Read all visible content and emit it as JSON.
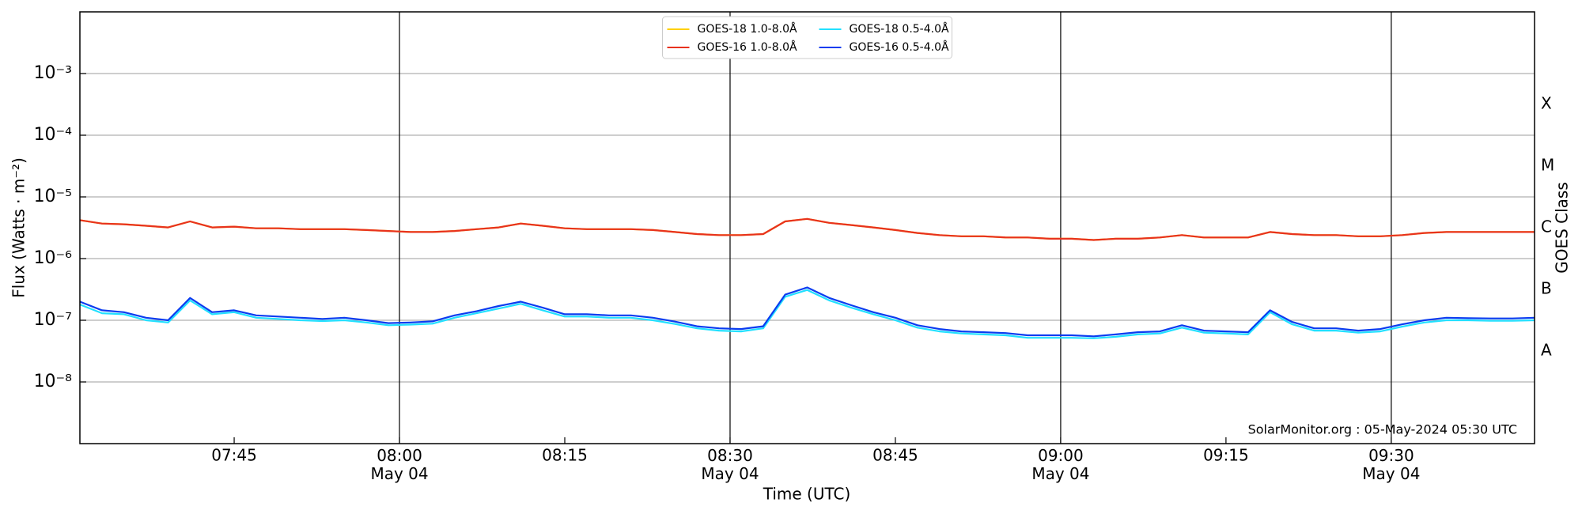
{
  "chart_data": {
    "type": "line",
    "ylabel": "Flux (Watts · m⁻²)",
    "xlabel": "Time (UTC)",
    "y2label": "GOES Class",
    "annotation": "SolarMonitor.org : 05-May-2024 05:30 UTC",
    "ylog": true,
    "grid": true,
    "legend": "upper center",
    "xlim": [
      "07:31",
      "09:43"
    ],
    "xticks": [
      "07:45",
      {
        "value": "08:00",
        "label": "08:00\nMay 04"
      },
      "08:15",
      {
        "value": "08:30",
        "label": "08:30\nMay 04"
      },
      "08:45",
      {
        "value": "09:00",
        "label": "09:00\nMay 04"
      },
      "09:15",
      {
        "value": "09:30",
        "label": "09:30\nMay 04"
      }
    ],
    "ylim": [
      1e-09,
      0.01
    ],
    "yticks": [
      {
        "value": 1e-08,
        "label": "10⁻⁸"
      },
      {
        "value": 1e-07,
        "label": "10⁻⁷"
      },
      {
        "value": 1e-06,
        "label": "10⁻⁶"
      },
      {
        "value": 1e-05,
        "label": "10⁻⁵"
      },
      {
        "value": 0.0001,
        "label": "10⁻⁴"
      },
      {
        "value": 0.001,
        "label": "10⁻³"
      }
    ],
    "y2lim": [
      1e-09,
      0.01
    ],
    "y2ticks": [
      {
        "value": 3.162e-08,
        "label": "A"
      },
      {
        "value": 3.162e-07,
        "label": "B"
      },
      {
        "value": 3.162e-06,
        "label": "C"
      },
      {
        "value": 3.162e-05,
        "label": "M"
      },
      {
        "value": 0.0003162,
        "label": "X"
      }
    ],
    "x": [
      "07:31",
      "07:33",
      "07:35",
      "07:37",
      "07:39",
      "07:41",
      "07:43",
      "07:45",
      "07:47",
      "07:49",
      "07:51",
      "07:53",
      "07:55",
      "07:57",
      "07:59",
      "08:01",
      "08:03",
      "08:05",
      "08:07",
      "08:09",
      "08:11",
      "08:13",
      "08:15",
      "08:17",
      "08:19",
      "08:21",
      "08:23",
      "08:25",
      "08:27",
      "08:29",
      "08:31",
      "08:33",
      "08:35",
      "08:37",
      "08:39",
      "08:41",
      "08:43",
      "08:45",
      "08:47",
      "08:49",
      "08:51",
      "08:53",
      "08:55",
      "08:57",
      "08:59",
      "09:01",
      "09:03",
      "09:05",
      "09:07",
      "09:09",
      "09:11",
      "09:13",
      "09:15",
      "09:17",
      "09:19",
      "09:21",
      "09:23",
      "09:25",
      "09:27",
      "09:29",
      "09:31",
      "09:33",
      "09:35",
      "09:37",
      "09:39",
      "09:41",
      "09:43"
    ],
    "series": [
      {
        "name": "GOES-18 1.0-8.0Å",
        "color": "#ffd000",
        "values": [
          4.2e-06,
          3.7e-06,
          3.6e-06,
          3.4e-06,
          3.2e-06,
          4e-06,
          3.2e-06,
          3.3e-06,
          3.1e-06,
          3.1e-06,
          3e-06,
          3e-06,
          3e-06,
          2.9e-06,
          2.8e-06,
          2.7e-06,
          2.7e-06,
          2.8e-06,
          3e-06,
          3.2e-06,
          3.7e-06,
          3.4e-06,
          3.1e-06,
          3e-06,
          3e-06,
          3e-06,
          2.9e-06,
          2.7e-06,
          2.5e-06,
          2.4e-06,
          2.4e-06,
          2.5e-06,
          4e-06,
          4.4e-06,
          3.8e-06,
          3.5e-06,
          3.2e-06,
          2.9e-06,
          2.6e-06,
          2.4e-06,
          2.3e-06,
          2.3e-06,
          2.2e-06,
          2.2e-06,
          2.1e-06,
          2.1e-06,
          2e-06,
          2.1e-06,
          2.1e-06,
          2.2e-06,
          2.4e-06,
          2.2e-06,
          2.2e-06,
          2.2e-06,
          2.7e-06,
          2.5e-06,
          2.4e-06,
          2.4e-06,
          2.3e-06,
          2.3e-06,
          2.4e-06,
          2.6e-06,
          2.7e-06,
          2.7e-06,
          2.7e-06,
          2.7e-06,
          2.7e-06
        ]
      },
      {
        "name": "GOES-16 1.0-8.0Å",
        "color": "#e8321e",
        "values": [
          4.2e-06,
          3.7e-06,
          3.6e-06,
          3.4e-06,
          3.2e-06,
          4e-06,
          3.2e-06,
          3.3e-06,
          3.1e-06,
          3.1e-06,
          3e-06,
          3e-06,
          3e-06,
          2.9e-06,
          2.8e-06,
          2.7e-06,
          2.7e-06,
          2.8e-06,
          3e-06,
          3.2e-06,
          3.7e-06,
          3.4e-06,
          3.1e-06,
          3e-06,
          3e-06,
          3e-06,
          2.9e-06,
          2.7e-06,
          2.5e-06,
          2.4e-06,
          2.4e-06,
          2.5e-06,
          4e-06,
          4.4e-06,
          3.8e-06,
          3.5e-06,
          3.2e-06,
          2.9e-06,
          2.6e-06,
          2.4e-06,
          2.3e-06,
          2.3e-06,
          2.2e-06,
          2.2e-06,
          2.1e-06,
          2.1e-06,
          2e-06,
          2.1e-06,
          2.1e-06,
          2.2e-06,
          2.4e-06,
          2.2e-06,
          2.2e-06,
          2.2e-06,
          2.7e-06,
          2.5e-06,
          2.4e-06,
          2.4e-06,
          2.3e-06,
          2.3e-06,
          2.4e-06,
          2.6e-06,
          2.7e-06,
          2.7e-06,
          2.7e-06,
          2.7e-06,
          2.7e-06
        ]
      },
      {
        "name": "GOES-18 0.5-4.0Å",
        "color": "#22e0ff",
        "values": [
          1.8e-07,
          1.3e-07,
          1.25e-07,
          1e-07,
          9.2e-08,
          2.1e-07,
          1.25e-07,
          1.35e-07,
          1.1e-07,
          1.05e-07,
          1e-07,
          9.7e-08,
          1e-07,
          9.2e-08,
          8.3e-08,
          8.5e-08,
          8.8e-08,
          1.1e-07,
          1.3e-07,
          1.55e-07,
          1.85e-07,
          1.45e-07,
          1.15e-07,
          1.15e-07,
          1.1e-07,
          1.1e-07,
          1e-07,
          8.7e-08,
          7.4e-08,
          6.8e-08,
          6.6e-08,
          7.4e-08,
          2.4e-07,
          3.1e-07,
          2.1e-07,
          1.6e-07,
          1.25e-07,
          1e-07,
          7.6e-08,
          6.6e-08,
          6.1e-08,
          5.9e-08,
          5.7e-08,
          5.2e-08,
          5.2e-08,
          5.2e-08,
          5.1e-08,
          5.4e-08,
          5.9e-08,
          6.1e-08,
          7.6e-08,
          6.3e-08,
          6.1e-08,
          5.9e-08,
          1.35e-07,
          8.6e-08,
          6.8e-08,
          6.8e-08,
          6.3e-08,
          6.6e-08,
          7.9e-08,
          9.2e-08,
          1e-07,
          1e-07,
          9.8e-08,
          9.8e-08,
          1e-07
        ]
      },
      {
        "name": "GOES-16 0.5-4.0Å",
        "color": "#0a3cf0",
        "values": [
          2e-07,
          1.45e-07,
          1.35e-07,
          1.1e-07,
          1e-07,
          2.3e-07,
          1.35e-07,
          1.45e-07,
          1.2e-07,
          1.15e-07,
          1.1e-07,
          1.05e-07,
          1.1e-07,
          1e-07,
          9e-08,
          9.2e-08,
          9.6e-08,
          1.2e-07,
          1.4e-07,
          1.7e-07,
          2e-07,
          1.6e-07,
          1.25e-07,
          1.25e-07,
          1.2e-07,
          1.2e-07,
          1.1e-07,
          9.5e-08,
          8e-08,
          7.4e-08,
          7.2e-08,
          8e-08,
          2.6e-07,
          3.4e-07,
          2.3e-07,
          1.75e-07,
          1.35e-07,
          1.1e-07,
          8.3e-08,
          7.2e-08,
          6.6e-08,
          6.4e-08,
          6.2e-08,
          5.7e-08,
          5.7e-08,
          5.7e-08,
          5.5e-08,
          5.9e-08,
          6.4e-08,
          6.6e-08,
          8.3e-08,
          6.8e-08,
          6.6e-08,
          6.4e-08,
          1.45e-07,
          9.4e-08,
          7.4e-08,
          7.4e-08,
          6.8e-08,
          7.2e-08,
          8.6e-08,
          1e-07,
          1.1e-07,
          1.08e-07,
          1.07e-07,
          1.07e-07,
          1.1e-07
        ]
      }
    ]
  }
}
